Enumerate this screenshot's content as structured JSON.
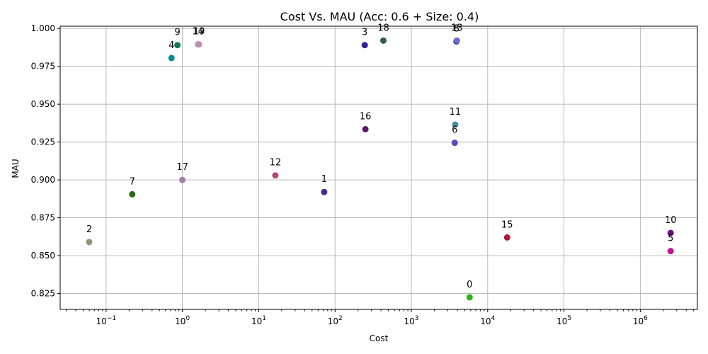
{
  "chart_data": {
    "type": "scatter",
    "title": "Cost Vs. MAU (Acc: 0.6 + Size: 0.4)",
    "xlabel": "Cost",
    "ylabel": "MAU",
    "x_scale": "log",
    "xlim": [
      0.025,
      5600000
    ],
    "ylim": [
      0.8145,
      1.0015
    ],
    "grid": true,
    "x_ticks": [
      0.1,
      1,
      10,
      100,
      1000,
      10000,
      100000,
      1000000
    ],
    "x_tick_labels": [
      {
        "base": "10",
        "exp": "−1"
      },
      {
        "base": "10",
        "exp": "0"
      },
      {
        "base": "10",
        "exp": "1"
      },
      {
        "base": "10",
        "exp": "2"
      },
      {
        "base": "10",
        "exp": "3"
      },
      {
        "base": "10",
        "exp": "4"
      },
      {
        "base": "10",
        "exp": "5"
      },
      {
        "base": "10",
        "exp": "6"
      }
    ],
    "y_ticks": [
      0.825,
      0.85,
      0.875,
      0.9,
      0.925,
      0.95,
      0.975,
      1.0
    ],
    "y_tick_labels": [
      "0.825",
      "0.850",
      "0.875",
      "0.900",
      "0.925",
      "0.950",
      "0.975",
      "1.000"
    ],
    "points": [
      {
        "label": "0",
        "x": 5800,
        "y": 0.8225,
        "color": "#2db51a"
      },
      {
        "label": "1",
        "x": 72,
        "y": 0.892,
        "color": "#4b2a8e"
      },
      {
        "label": "2",
        "x": 0.06,
        "y": 0.859,
        "color": "#8a947a"
      },
      {
        "label": "3",
        "x": 245,
        "y": 0.989,
        "color": "#3a1e9a"
      },
      {
        "label": "4",
        "x": 0.72,
        "y": 0.9805,
        "color": "#0a8a8e"
      },
      {
        "label": "5",
        "x": 2500000,
        "y": 0.853,
        "color": "#c8109a"
      },
      {
        "label": "6",
        "x": 3700,
        "y": 0.9245,
        "color": "#5a48c0"
      },
      {
        "label": "7",
        "x": 0.22,
        "y": 0.8905,
        "color": "#2a6a12"
      },
      {
        "label": "8",
        "x": 3900,
        "y": 0.9915,
        "color": "#2a2a70"
      },
      {
        "label": "9",
        "x": 0.86,
        "y": 0.989,
        "color": "#137a52"
      },
      {
        "label": "10",
        "x": 2500000,
        "y": 0.865,
        "color": "#6a1090"
      },
      {
        "label": "11",
        "x": 3750,
        "y": 0.9365,
        "color": "#4a8aa5"
      },
      {
        "label": "12",
        "x": 16.5,
        "y": 0.903,
        "color": "#b04a78"
      },
      {
        "label": "13",
        "x": 3950,
        "y": 0.992,
        "color": "#6a6ad0"
      },
      {
        "label": "14",
        "x": 1.6,
        "y": 0.9895,
        "color": "#9aa0c0"
      },
      {
        "label": "15",
        "x": 18000,
        "y": 0.862,
        "color": "#b01a3a"
      },
      {
        "label": "16",
        "x": 250,
        "y": 0.9335,
        "color": "#5a1a6a"
      },
      {
        "label": "17",
        "x": 1.0,
        "y": 0.9,
        "color": "#a080a8"
      },
      {
        "label": "18",
        "x": 430,
        "y": 0.992,
        "color": "#2f5a58"
      },
      {
        "label": "19",
        "x": 1.65,
        "y": 0.9895,
        "color": "#c090a8"
      }
    ]
  }
}
